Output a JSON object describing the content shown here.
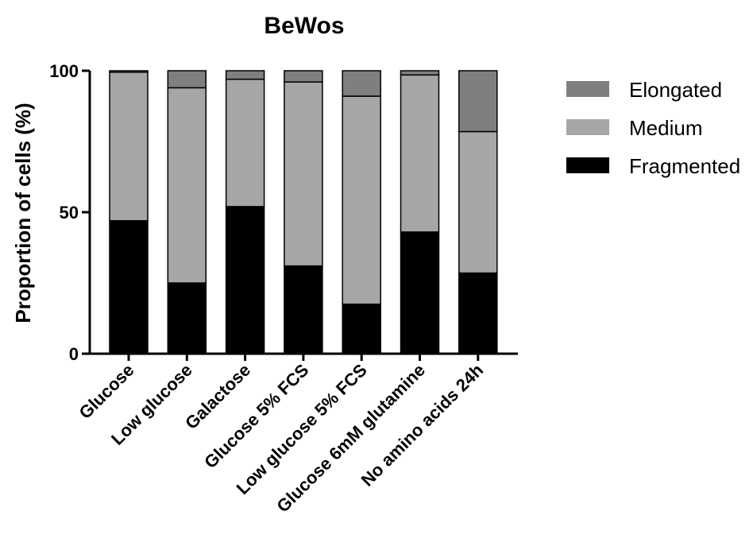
{
  "chart_data": {
    "type": "bar",
    "stacked": true,
    "title": "BeWos",
    "xlabel": "",
    "ylabel": "Proportion of cells (%)",
    "ylim": [
      0,
      100
    ],
    "yticks": [
      "0",
      "50",
      "100"
    ],
    "legend_position": "right",
    "categories": [
      "Glucose",
      "Low glucose",
      "Galactose",
      "Glucose 5% FCS",
      "Low glucose 5% FCS",
      "Glucose 6mM glutamine",
      "No amino acids 24h"
    ],
    "series": [
      {
        "name": "Fragmented",
        "color": "#000000",
        "values": [
          47,
          25,
          52,
          31,
          17.5,
          43,
          28.5
        ]
      },
      {
        "name": "Medium",
        "color": "#a6a6a6",
        "values": [
          52.5,
          69,
          45,
          65,
          73.5,
          55.5,
          50
        ]
      },
      {
        "name": "Elongated",
        "color": "#7f7f7f",
        "values": [
          0.5,
          6,
          3,
          4,
          9,
          1.5,
          21.5
        ]
      }
    ],
    "legend_order": [
      "Elongated",
      "Medium",
      "Fragmented"
    ]
  }
}
